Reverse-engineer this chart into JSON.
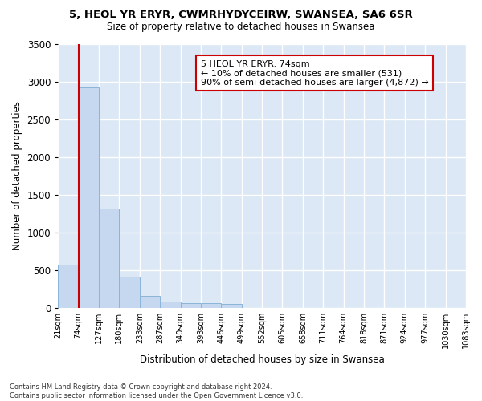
{
  "title1": "5, HEOL YR ERYR, CWMRHYDYCEIRW, SWANSEA, SA6 6SR",
  "title2": "Size of property relative to detached houses in Swansea",
  "xlabel": "Distribution of detached houses by size in Swansea",
  "ylabel": "Number of detached properties",
  "footnote": "Contains HM Land Registry data © Crown copyright and database right 2024.\nContains public sector information licensed under the Open Government Licence v3.0.",
  "bin_labels": [
    "21sqm",
    "74sqm",
    "127sqm",
    "180sqm",
    "233sqm",
    "287sqm",
    "340sqm",
    "393sqm",
    "446sqm",
    "499sqm",
    "552sqm",
    "605sqm",
    "658sqm",
    "711sqm",
    "764sqm",
    "818sqm",
    "871sqm",
    "924sqm",
    "977sqm",
    "1030sqm",
    "1083sqm"
  ],
  "bar_values": [
    570,
    2920,
    1320,
    410,
    160,
    85,
    60,
    55,
    50,
    0,
    0,
    0,
    0,
    0,
    0,
    0,
    0,
    0,
    0,
    0
  ],
  "bar_color": "#c5d8f0",
  "bar_edge_color": "#8ab4d8",
  "annotation_text": "5 HEOL YR ERYR: 74sqm\n← 10% of detached houses are smaller (531)\n90% of semi-detached houses are larger (4,872) →",
  "annotation_box_color": "#ffffff",
  "annotation_box_edge": "#cc0000",
  "property_line_color": "#cc0000",
  "ylim": [
    0,
    3500
  ],
  "yticks": [
    0,
    500,
    1000,
    1500,
    2000,
    2500,
    3000,
    3500
  ],
  "background_color": "#ffffff",
  "plot_bg_color": "#dce8f5",
  "grid_color": "#ffffff"
}
